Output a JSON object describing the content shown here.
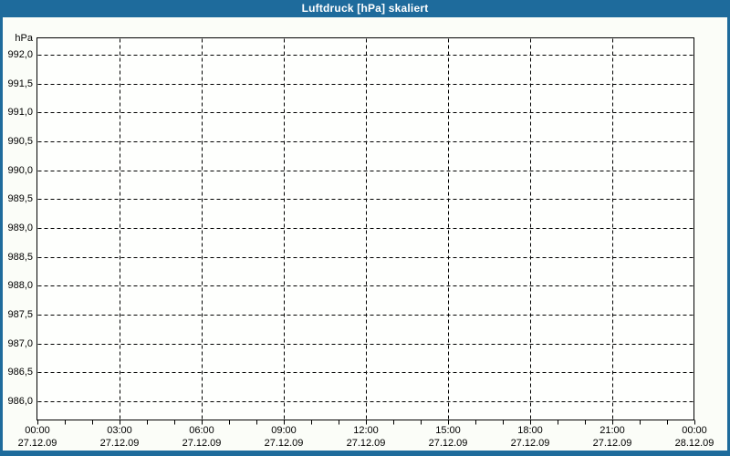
{
  "window": {
    "title": "Luftdruck [hPa] skaliert"
  },
  "colors": {
    "accent_blue": "#1e6b9c",
    "title_text": "#ffffff",
    "outer_background": "#fbfdf8",
    "plot_background": "#fefffd",
    "grid_line": "#000000"
  },
  "chart_data": {
    "type": "line",
    "title": "Luftdruck [hPa] skaliert",
    "ylabel_unit": "hPa",
    "ylim": [
      986.0,
      992.0
    ],
    "y_tick_step": 0.5,
    "grid": true,
    "grid_style": "dashed",
    "y_ticks": [
      {
        "label": "992,0",
        "value": 992.0
      },
      {
        "label": "991,5",
        "value": 991.5
      },
      {
        "label": "991,0",
        "value": 991.0
      },
      {
        "label": "990,5",
        "value": 990.5
      },
      {
        "label": "990,0",
        "value": 990.0
      },
      {
        "label": "989,5",
        "value": 989.5
      },
      {
        "label": "989,0",
        "value": 989.0
      },
      {
        "label": "988,5",
        "value": 988.5
      },
      {
        "label": "988,0",
        "value": 988.0
      },
      {
        "label": "987,5",
        "value": 987.5
      },
      {
        "label": "987,0",
        "value": 987.0
      },
      {
        "label": "986,5",
        "value": 986.5
      },
      {
        "label": "986,0",
        "value": 986.0
      }
    ],
    "x_ticks": [
      {
        "time": "00:00",
        "date": "27.12.09"
      },
      {
        "time": "03:00",
        "date": "27.12.09"
      },
      {
        "time": "06:00",
        "date": "27.12.09"
      },
      {
        "time": "09:00",
        "date": "27.12.09"
      },
      {
        "time": "12:00",
        "date": "27.12.09"
      },
      {
        "time": "15:00",
        "date": "27.12.09"
      },
      {
        "time": "18:00",
        "date": "27.12.09"
      },
      {
        "time": "21:00",
        "date": "27.12.09"
      },
      {
        "time": "00:00",
        "date": "28.12.09"
      }
    ],
    "x_major_interval_hours": 3,
    "x_minor_ticks_between_majors": 2,
    "series": []
  }
}
